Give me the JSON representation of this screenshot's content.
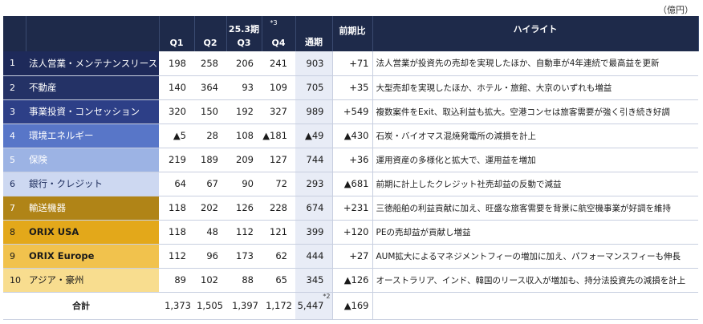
{
  "unit": "（億円）",
  "header": {
    "period": "25.3期",
    "q1": "Q1",
    "q2": "Q2",
    "q3": "Q3",
    "q4": "Q4",
    "q4_note": "*3",
    "fy": "通期",
    "yoy": "前期比",
    "highlight": "ハイライト"
  },
  "rows": [
    {
      "no": "1",
      "name": "法人営業・メンテナンスリース",
      "q1": "198",
      "q2": "258",
      "q3": "206",
      "q4": "241",
      "fy": "903",
      "yoy": "+71",
      "highlight": "法人営業が投資先の売却を実現したほか、自動車が4年連続で最高益を更新",
      "color": "#1e2a5a"
    },
    {
      "no": "2",
      "name": "不動産",
      "q1": "140",
      "q2": "364",
      "q3": "93",
      "q4": "109",
      "fy": "705",
      "yoy": "+35",
      "highlight": "大型売却を実現したほか、ホテル・旅館、大京のいずれも増益",
      "color": "#243266"
    },
    {
      "no": "3",
      "name": "事業投資・コンセッション",
      "q1": "320",
      "q2": "150",
      "q3": "192",
      "q4": "327",
      "fy": "989",
      "yoy": "+549",
      "highlight": "複数案件をExit、取込利益も拡大。空港コンセは旅客需要が強く引き続き好調",
      "color": "#2d3f87"
    },
    {
      "no": "4",
      "name": "環境エネルギー",
      "q1": "▲5",
      "q2": "28",
      "q3": "108",
      "q4": "▲181",
      "fy": "▲49",
      "yoy": "▲430",
      "highlight": "石炭・バイオマス混焼発電所の減損を計上",
      "color": "#5876c8"
    },
    {
      "no": "5",
      "name": "保険",
      "q1": "219",
      "q2": "189",
      "q3": "209",
      "q4": "127",
      "fy": "744",
      "yoy": "+36",
      "highlight": "運用資産の多様化と拡大で、運用益を増加",
      "color": "#9cb3e4"
    },
    {
      "no": "6",
      "name": "銀行・クレジット",
      "q1": "64",
      "q2": "67",
      "q3": "90",
      "q4": "72",
      "fy": "293",
      "yoy": "▲681",
      "highlight": "前期に計上したクレジット社売却益の反動で減益",
      "color": "#cdd8f1",
      "dark": true
    },
    {
      "no": "7",
      "name": "輸送機器",
      "q1": "118",
      "q2": "202",
      "q3": "126",
      "q4": "228",
      "fy": "674",
      "yoy": "+231",
      "highlight": "三徳船舶の利益貢献に加え、旺盛な旅客需要を背景に航空機事業が好調を維持",
      "color": "#b08417"
    },
    {
      "no": "8",
      "name": "ORIX USA",
      "q1": "118",
      "q2": "48",
      "q3": "112",
      "q4": "121",
      "fy": "399",
      "yoy": "+120",
      "highlight": "PEの売却益が貢献し増益",
      "color": "#e3a81a",
      "dark": true
    },
    {
      "no": "9",
      "name": "ORIX Europe",
      "q1": "112",
      "q2": "96",
      "q3": "173",
      "q4": "62",
      "fy": "444",
      "yoy": "+27",
      "highlight": "AUM拡大によるマネジメントフィーの増加に加え、パフォーマンスフィーも伸長",
      "color": "#f1c24d",
      "dark": true
    },
    {
      "no": "10",
      "name": "アジア・豪州",
      "q1": "89",
      "q2": "102",
      "q3": "88",
      "q4": "65",
      "fy": "345",
      "yoy": "▲126",
      "highlight": "オーストラリア、インド、韓国のリース収入が増加も、持分法投資先の減損を計上",
      "color": "#f8dd8f",
      "dark": true
    }
  ],
  "total": {
    "label": "合計",
    "q1": "1,373",
    "q2": "1,505",
    "q3": "1,397",
    "q4": "1,172",
    "fy": "5,447",
    "fy_note": "*2",
    "yoy": "▲169"
  }
}
